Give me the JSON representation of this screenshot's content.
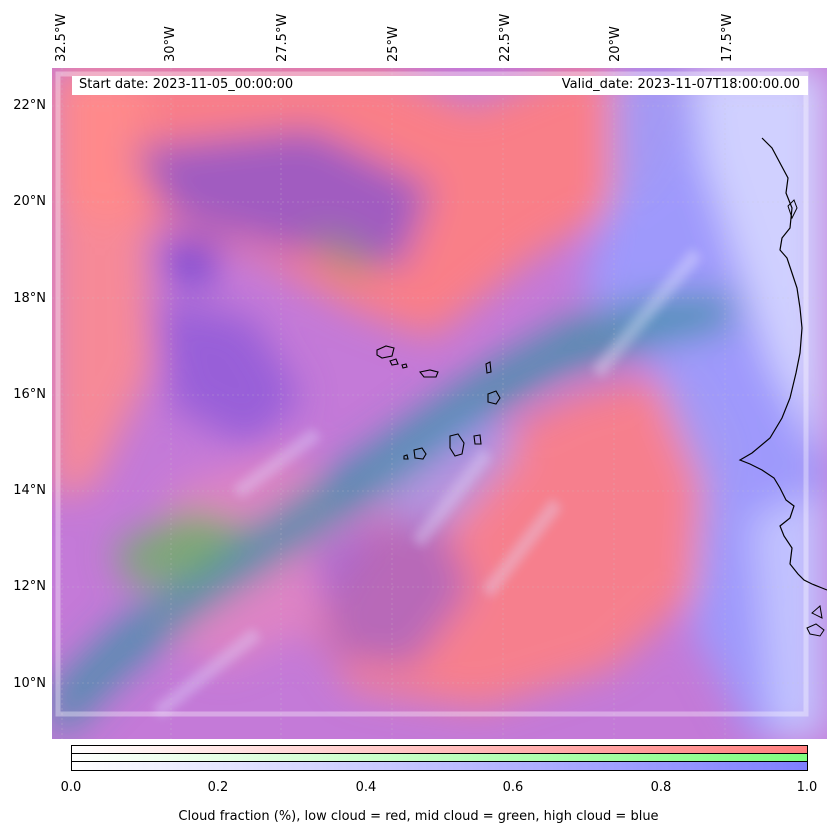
{
  "map": {
    "start_date": "Start date: 2023-11-05_00:00:00",
    "valid_date": "Valid_date: 2023-11-07T18:00:00.00",
    "lon_labels": [
      "32.5°W",
      "30°W",
      "27.5°W",
      "25°W",
      "22.5°W",
      "20°W",
      "17.5°W"
    ],
    "lat_labels": [
      "22°N",
      "20°N",
      "18°N",
      "16°N",
      "14°N",
      "12°N",
      "10°N"
    ],
    "colors": {
      "low_cloud": "#ff7f7f",
      "mid_cloud": "#7fff7f",
      "high_cloud": "#7f7fff",
      "mixed": "#7a3fd6",
      "coast": "#000000"
    }
  },
  "colorbar": {
    "ticks": [
      "0.0",
      "0.2",
      "0.4",
      "0.6",
      "0.8",
      "1.0"
    ],
    "label": "Cloud fraction (%), low cloud = red, mid cloud = green, high cloud = blue",
    "bands": [
      "#ff7f7f",
      "#7fff7f",
      "#7f7fff"
    ]
  }
}
